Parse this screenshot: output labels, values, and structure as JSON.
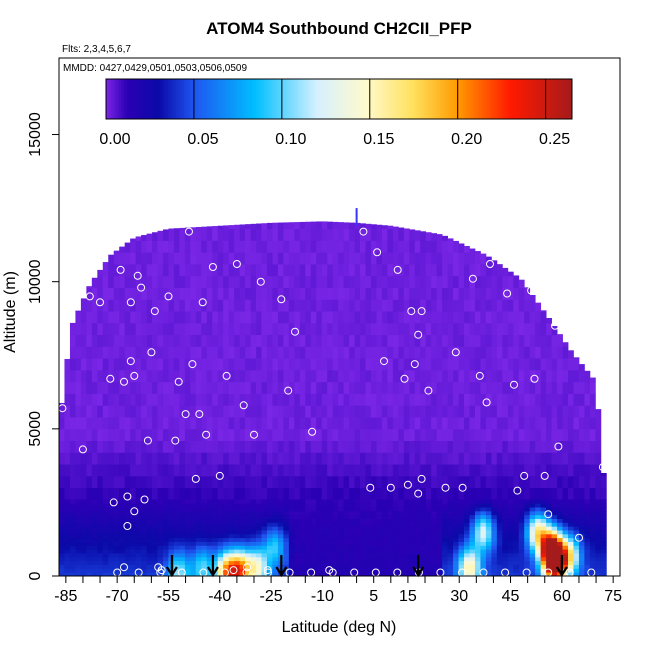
{
  "chart_data": {
    "type": "heatmap",
    "title": "ATOM4 Southbound CH2CII_PFP",
    "flights_label": "Flts: 2,3,4,5,6,7",
    "mmdd_label": "MMDD: 0427,0429,0501,0503,0506,0509",
    "xlabel": "Latitude (deg N)",
    "ylabel": "Altitude (m)",
    "xlim": [
      -87,
      77
    ],
    "ylim": [
      0,
      17600
    ],
    "x_ticks": [
      -85,
      -70,
      -55,
      -40,
      -25,
      -10,
      5,
      15,
      30,
      45,
      60,
      75
    ],
    "x_tick_labels": [
      "-85",
      "-70",
      "-55",
      "-40",
      "-25",
      "-10",
      "5",
      "15",
      "30",
      "45",
      "60",
      "75"
    ],
    "x_minor_ticks": [
      -80,
      -75,
      -65,
      -60,
      -50,
      -45,
      -35,
      -30,
      -20,
      -15,
      -5,
      0,
      10,
      20,
      25,
      35,
      40,
      50,
      55,
      65,
      70
    ],
    "y_ticks": [
      0,
      5000,
      10000,
      15000
    ],
    "y_tick_labels": [
      "0",
      "5000",
      "10000",
      "15000"
    ],
    "colorbar": {
      "min": 0.0,
      "max": 0.265,
      "ticks": [
        0.0,
        0.05,
        0.1,
        0.15,
        0.2,
        0.25
      ],
      "tick_labels": [
        "0.00",
        "0.05",
        "0.10",
        "0.15",
        "0.20",
        "0.25"
      ],
      "stops": [
        {
          "v": 0.0,
          "c": "#7a26e6"
        },
        {
          "v": 0.012,
          "c": "#2c00b5"
        },
        {
          "v": 0.03,
          "c": "#0a0aa8"
        },
        {
          "v": 0.05,
          "c": "#1f55f0"
        },
        {
          "v": 0.085,
          "c": "#00bfff"
        },
        {
          "v": 0.12,
          "c": "#d6f0ff"
        },
        {
          "v": 0.148,
          "c": "#fffacc"
        },
        {
          "v": 0.175,
          "c": "#ffe05c"
        },
        {
          "v": 0.2,
          "c": "#ff9a00"
        },
        {
          "v": 0.23,
          "c": "#ff1a00"
        },
        {
          "v": 0.265,
          "c": "#a51b1b"
        }
      ]
    },
    "hot_spots": [
      {
        "lat": -52,
        "alt": 150,
        "value": 0.07
      },
      {
        "lat": -45,
        "alt": 300,
        "value": 0.06
      },
      {
        "lat": -38,
        "alt": 150,
        "value": 0.15
      },
      {
        "lat": -34,
        "alt": 200,
        "value": 0.16
      },
      {
        "lat": -29,
        "alt": 300,
        "value": 0.1
      },
      {
        "lat": -24,
        "alt": 1000,
        "value": 0.06
      },
      {
        "lat": 33,
        "alt": 300,
        "value": 0.12
      },
      {
        "lat": 37,
        "alt": 1500,
        "value": 0.1
      },
      {
        "lat": 53,
        "alt": 1500,
        "value": 0.13
      },
      {
        "lat": 57,
        "alt": 900,
        "value": 0.24
      },
      {
        "lat": 58,
        "alt": 400,
        "value": 0.2
      },
      {
        "lat": 62,
        "alt": 700,
        "value": 0.12
      }
    ],
    "sample_points": [
      [
        -86,
        5700
      ],
      [
        -80,
        4300
      ],
      [
        -78,
        9500
      ],
      [
        -75,
        9300
      ],
      [
        -72,
        6700
      ],
      [
        -71,
        2500
      ],
      [
        -70,
        11300
      ],
      [
        -69,
        10400
      ],
      [
        -68,
        6600
      ],
      [
        -68,
        300
      ],
      [
        -67,
        1700
      ],
      [
        -67,
        2700
      ],
      [
        -66,
        7300
      ],
      [
        -66,
        9300
      ],
      [
        -65,
        6800
      ],
      [
        -65,
        2200
      ],
      [
        -64,
        10200
      ],
      [
        -63,
        9800
      ],
      [
        -62,
        2600
      ],
      [
        -61,
        4600
      ],
      [
        -60,
        7600
      ],
      [
        -59,
        9000
      ],
      [
        -58,
        300
      ],
      [
        -57,
        200
      ],
      [
        -55,
        9500
      ],
      [
        -53,
        4600
      ],
      [
        -52,
        6600
      ],
      [
        -50,
        5500
      ],
      [
        -49,
        11700
      ],
      [
        -48,
        7200
      ],
      [
        -47,
        3300
      ],
      [
        -46,
        5500
      ],
      [
        -45,
        9300
      ],
      [
        -44,
        4800
      ],
      [
        -42,
        10500
      ],
      [
        -40,
        3400
      ],
      [
        -38,
        6800
      ],
      [
        -36,
        200
      ],
      [
        -35,
        10600
      ],
      [
        -33,
        5800
      ],
      [
        -32,
        300
      ],
      [
        -30,
        4800
      ],
      [
        -28,
        10000
      ],
      [
        -26,
        200
      ],
      [
        -22,
        9400
      ],
      [
        -20,
        6300
      ],
      [
        -18,
        8300
      ],
      [
        -13,
        4900
      ],
      [
        -8,
        200
      ],
      [
        2,
        11700
      ],
      [
        4,
        3000
      ],
      [
        6,
        11000
      ],
      [
        8,
        7300
      ],
      [
        10,
        3000
      ],
      [
        12,
        10400
      ],
      [
        14,
        6700
      ],
      [
        15,
        3100
      ],
      [
        16,
        9000
      ],
      [
        17,
        7200
      ],
      [
        18,
        8200
      ],
      [
        18,
        2800
      ],
      [
        19,
        3300
      ],
      [
        19,
        9000
      ],
      [
        21,
        6300
      ],
      [
        24,
        11800
      ],
      [
        26,
        3000
      ],
      [
        29,
        7600
      ],
      [
        31,
        3000
      ],
      [
        34,
        10100
      ],
      [
        36,
        6800
      ],
      [
        38,
        5900
      ],
      [
        39,
        10600
      ],
      [
        44,
        9600
      ],
      [
        46,
        6500
      ],
      [
        47,
        2900
      ],
      [
        49,
        3400
      ],
      [
        51,
        9700
      ],
      [
        52,
        6700
      ],
      [
        55,
        3400
      ],
      [
        56,
        2100
      ],
      [
        58,
        8500
      ],
      [
        59,
        4400
      ],
      [
        65,
        1300
      ],
      [
        70,
        7200
      ],
      [
        72,
        3700
      ]
    ],
    "arrows_lat": [
      -54,
      -42,
      -22,
      18,
      60
    ]
  }
}
